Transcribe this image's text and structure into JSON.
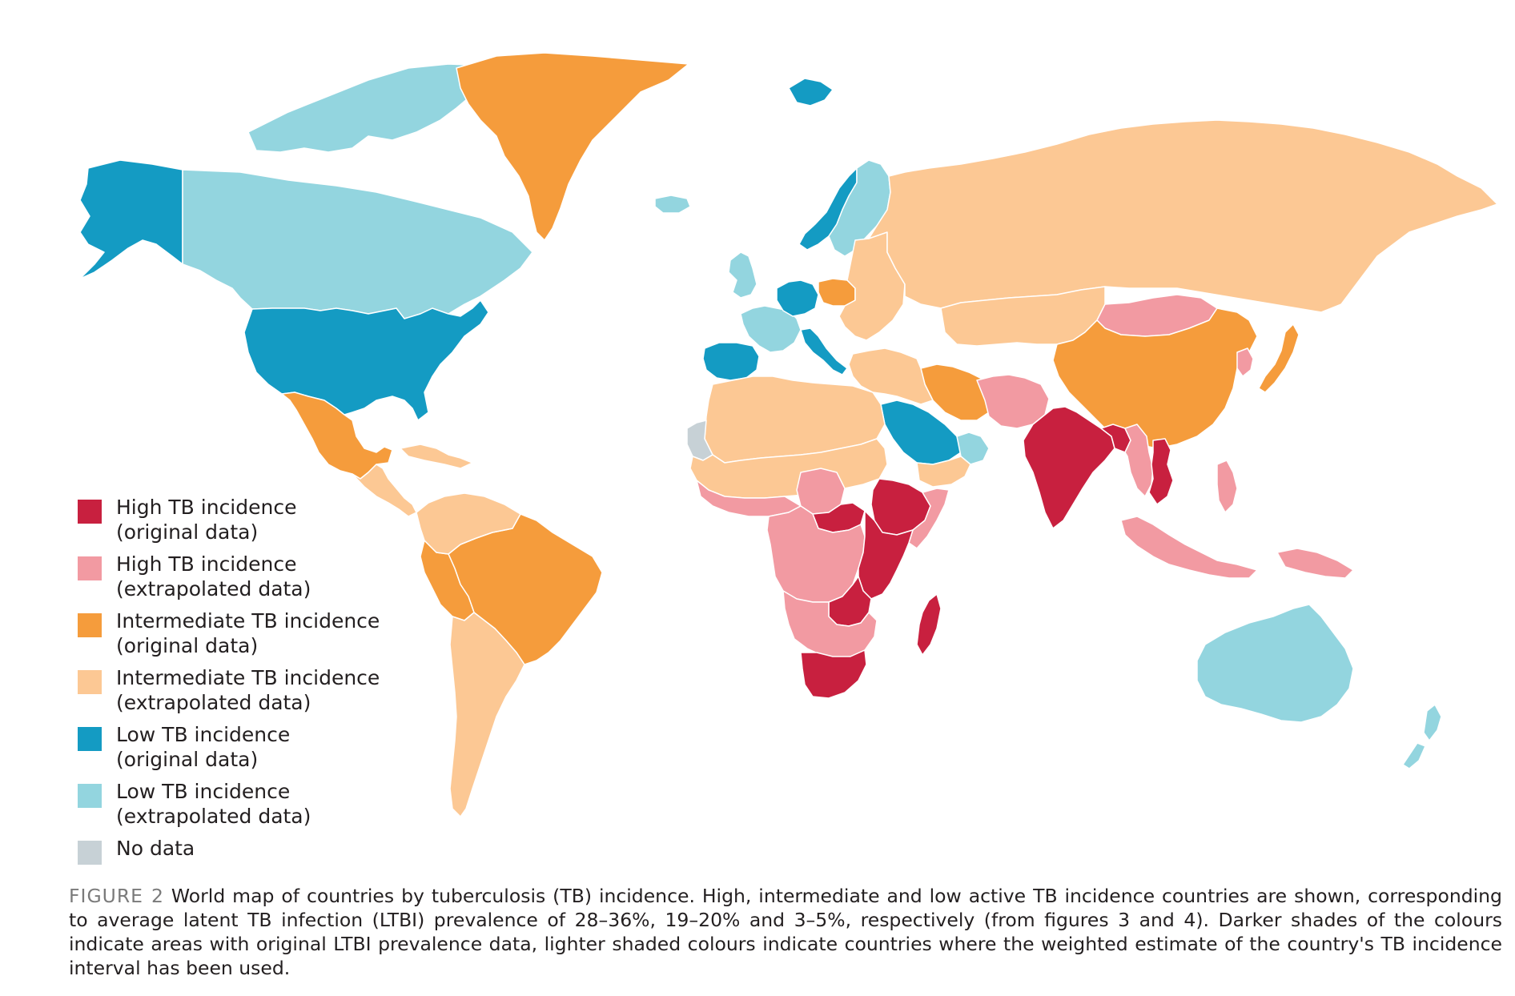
{
  "colors": {
    "high_original": "#c8203f",
    "high_extrapolated": "#f29aa2",
    "intermediate_original": "#f59c3c",
    "intermediate_extrapolated": "#fcc894",
    "low_original": "#149bc3",
    "low_extrapolated": "#93d5df",
    "no_data": "#c7d1d6"
  },
  "legend": [
    {
      "key": "high_original",
      "line1": "High TB incidence",
      "line2": "(original data)"
    },
    {
      "key": "high_extrapolated",
      "line1": "High TB incidence",
      "line2": "(extrapolated data)"
    },
    {
      "key": "intermediate_original",
      "line1": "Intermediate TB incidence",
      "line2": "(original data)"
    },
    {
      "key": "intermediate_extrapolated",
      "line1": "Intermediate TB incidence",
      "line2": "(extrapolated data)"
    },
    {
      "key": "low_original",
      "line1": "Low TB incidence",
      "line2": "(original data)"
    },
    {
      "key": "low_extrapolated",
      "line1": "Low TB incidence",
      "line2": "(extrapolated data)"
    },
    {
      "key": "no_data",
      "line1": "No data",
      "line2": ""
    }
  ],
  "regions": [
    {
      "name": "Alaska",
      "category": "low_original"
    },
    {
      "name": "Canada",
      "category": "low_extrapolated"
    },
    {
      "name": "Canadian Arctic",
      "category": "low_extrapolated"
    },
    {
      "name": "Greenland",
      "category": "intermediate_original"
    },
    {
      "name": "Iceland",
      "category": "low_extrapolated"
    },
    {
      "name": "Svalbard",
      "category": "low_original"
    },
    {
      "name": "United States",
      "category": "low_original"
    },
    {
      "name": "Mexico",
      "category": "intermediate_original"
    },
    {
      "name": "Central America",
      "category": "intermediate_extrapolated"
    },
    {
      "name": "Caribbean",
      "category": "intermediate_extrapolated"
    },
    {
      "name": "Brazil",
      "category": "intermediate_original"
    },
    {
      "name": "Peru",
      "category": "intermediate_original"
    },
    {
      "name": "Colombia & Venezuela",
      "category": "intermediate_extrapolated"
    },
    {
      "name": "Southern Cone",
      "category": "intermediate_extrapolated"
    },
    {
      "name": "Norway",
      "category": "low_original"
    },
    {
      "name": "Sweden & Finland",
      "category": "low_extrapolated"
    },
    {
      "name": "United Kingdom",
      "category": "low_extrapolated"
    },
    {
      "name": "Western Europe",
      "category": "low_extrapolated"
    },
    {
      "name": "Netherlands & Germany",
      "category": "low_original"
    },
    {
      "name": "Spain",
      "category": "low_original"
    },
    {
      "name": "Italy",
      "category": "low_original"
    },
    {
      "name": "Poland",
      "category": "intermediate_original"
    },
    {
      "name": "Eastern Europe",
      "category": "intermediate_extrapolated"
    },
    {
      "name": "Russia",
      "category": "intermediate_extrapolated"
    },
    {
      "name": "Central Asia",
      "category": "intermediate_extrapolated"
    },
    {
      "name": "Mongolia",
      "category": "high_extrapolated"
    },
    {
      "name": "China",
      "category": "intermediate_original"
    },
    {
      "name": "Korea",
      "category": "high_extrapolated"
    },
    {
      "name": "Japan",
      "category": "intermediate_original"
    },
    {
      "name": "Iran",
      "category": "intermediate_original"
    },
    {
      "name": "Turkey & Middle East",
      "category": "intermediate_extrapolated"
    },
    {
      "name": "Saudi Arabia",
      "category": "low_original"
    },
    {
      "name": "Gulf States",
      "category": "low_extrapolated"
    },
    {
      "name": "Yemen & Oman",
      "category": "intermediate_extrapolated"
    },
    {
      "name": "Afghanistan & Pakistan",
      "category": "high_extrapolated"
    },
    {
      "name": "India",
      "category": "high_original"
    },
    {
      "name": "Bangladesh",
      "category": "high_original"
    },
    {
      "name": "Myanmar & Thailand",
      "category": "high_extrapolated"
    },
    {
      "name": "Vietnam & Cambodia",
      "category": "high_original"
    },
    {
      "name": "Malaysia & Indonesia",
      "category": "high_extrapolated"
    },
    {
      "name": "Philippines",
      "category": "high_extrapolated"
    },
    {
      "name": "Papua New Guinea",
      "category": "high_extrapolated"
    },
    {
      "name": "Australia",
      "category": "low_extrapolated"
    },
    {
      "name": "New Zealand",
      "category": "low_extrapolated"
    },
    {
      "name": "North Africa",
      "category": "intermediate_extrapolated"
    },
    {
      "name": "Western Sahara",
      "category": "no_data"
    },
    {
      "name": "Sahel",
      "category": "intermediate_extrapolated"
    },
    {
      "name": "Nigeria & Chad",
      "category": "high_extrapolated"
    },
    {
      "name": "West Africa coast",
      "category": "high_extrapolated"
    },
    {
      "name": "Central African Republic",
      "category": "high_original"
    },
    {
      "name": "Ethiopia",
      "category": "high_original"
    },
    {
      "name": "Somalia",
      "category": "high_extrapolated"
    },
    {
      "name": "Central Africa",
      "category": "high_extrapolated"
    },
    {
      "name": "East Africa",
      "category": "high_original"
    },
    {
      "name": "Zambia & Malawi",
      "category": "high_original"
    },
    {
      "name": "Southern Africa",
      "category": "high_extrapolated"
    },
    {
      "name": "South Africa",
      "category": "high_original"
    },
    {
      "name": "Madagascar",
      "category": "high_original"
    }
  ],
  "caption": {
    "label": "FIGURE 2",
    "text": "World map of countries by tuberculosis (TB) incidence. High, intermediate and low active TB incidence countries are shown, corresponding to average latent TB infection (LTBI) prevalence of 28–36%, 19–20% and 3–5%, respectively (from figures 3 and 4). Darker shades of the colours indicate areas with original LTBI prevalence data, lighter shaded colours indicate countries where the weighted estimate of the country's TB incidence interval has been used."
  }
}
